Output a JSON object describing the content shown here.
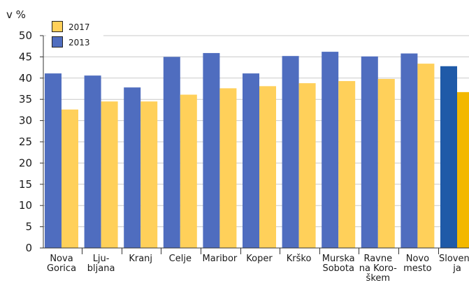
{
  "chart_data": {
    "type": "bar",
    "ylabel": "v %",
    "ylim": [
      0,
      50
    ],
    "yticks": [
      0,
      5,
      10,
      15,
      20,
      25,
      30,
      35,
      40,
      45,
      50
    ],
    "grid": true,
    "legend_position": "top-left",
    "categories": [
      [
        "Nova",
        "Gorica"
      ],
      [
        "Lju-",
        "bljana"
      ],
      [
        "Kranj"
      ],
      [
        "Celje"
      ],
      [
        "Maribor"
      ],
      [
        "Koper"
      ],
      [
        "Krško"
      ],
      [
        "Murska",
        "Sobota"
      ],
      [
        "Ravne",
        "na Koro-",
        "škem"
      ],
      [
        "Novo",
        "mesto"
      ],
      [
        "Sloveni-",
        "ja"
      ]
    ],
    "series": [
      {
        "name": "2013",
        "color": "#4f6dbf",
        "highlight_color": "#1f5aa8",
        "values": [
          41.1,
          40.6,
          37.8,
          45.0,
          45.9,
          41.1,
          45.2,
          46.2,
          45.1,
          45.8,
          42.8
        ]
      },
      {
        "name": "2017",
        "color": "#ffd05a",
        "highlight_color": "#f3b800",
        "values": [
          32.6,
          34.5,
          34.5,
          36.1,
          37.6,
          38.1,
          38.8,
          39.3,
          39.8,
          43.4,
          36.7
        ]
      }
    ],
    "legend": [
      {
        "name": "2017",
        "color": "#ffd05a"
      },
      {
        "name": "2013",
        "color": "#4f6dbf"
      }
    ],
    "highlight_category_index": 10
  }
}
